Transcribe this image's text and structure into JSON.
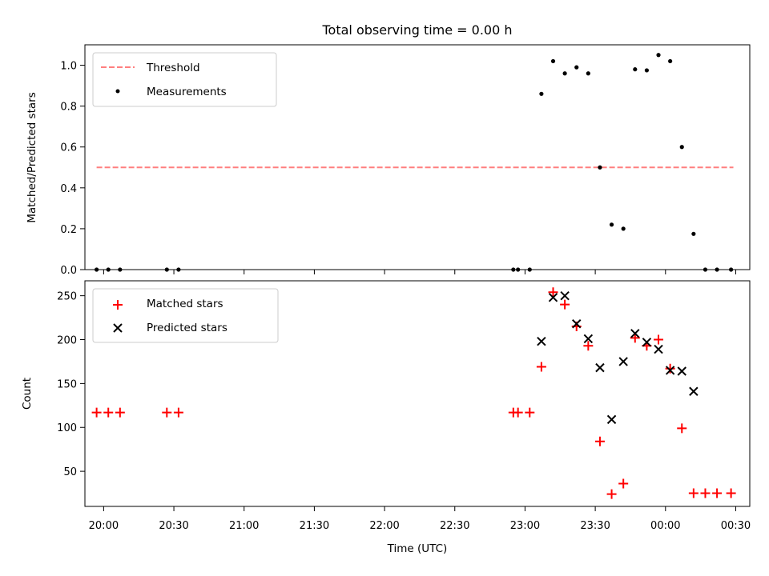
{
  "chart_data": [
    {
      "type": "scatter",
      "title": "Total observing time = 0.00 h",
      "xlabel": "",
      "ylabel": "Matched/Predicted stars",
      "xlim": [
        "19:52",
        "00:36"
      ],
      "ylim": [
        0,
        1.1
      ],
      "yticks": [
        "0.0",
        "0.2",
        "0.4",
        "0.6",
        "0.8",
        "1.0"
      ],
      "legend_position": "top-left",
      "colors": {
        "threshold": "#ff7f7f",
        "measurements": "#000000"
      },
      "series": [
        {
          "name": "Threshold",
          "kind": "dashed-line",
          "x": [
            "19:57",
            "00:29"
          ],
          "y": [
            0.5,
            0.5
          ]
        },
        {
          "name": "Measurements",
          "kind": "dots",
          "x": [
            "19:57",
            "20:02",
            "20:07",
            "20:27",
            "20:32",
            "22:55",
            "22:57",
            "23:02",
            "23:07",
            "23:12",
            "23:17",
            "23:22",
            "23:27",
            "23:32",
            "23:37",
            "23:42",
            "23:47",
            "23:52",
            "23:57",
            "00:02",
            "00:07",
            "00:12",
            "00:17",
            "00:22",
            "00:28"
          ],
          "y": [
            0,
            0,
            0,
            0,
            0,
            0,
            0,
            0,
            0.86,
            1.02,
            0.96,
            0.99,
            0.96,
            0.5,
            0.22,
            0.2,
            0.98,
            0.975,
            1.05,
            1.02,
            0.6,
            0.175,
            0,
            0,
            0
          ]
        }
      ]
    },
    {
      "type": "scatter",
      "title": "",
      "xlabel": "Time (UTC)",
      "ylabel": "Count",
      "xlim": [
        "19:52",
        "00:36"
      ],
      "ylim": [
        10,
        267
      ],
      "yticks": [
        "50",
        "100",
        "150",
        "200",
        "250"
      ],
      "xticks": [
        "20:00",
        "20:30",
        "21:00",
        "21:30",
        "22:00",
        "22:30",
        "23:00",
        "23:30",
        "00:00",
        "00:30"
      ],
      "legend_position": "top-left",
      "colors": {
        "matched": "#ff0000",
        "predicted": "#000000"
      },
      "series": [
        {
          "name": "Matched stars",
          "kind": "plus",
          "x": [
            "19:57",
            "20:02",
            "20:07",
            "20:27",
            "20:32",
            "22:55",
            "22:57",
            "23:02",
            "23:07",
            "23:12",
            "23:17",
            "23:22",
            "23:27",
            "23:32",
            "23:37",
            "23:42",
            "23:47",
            "23:52",
            "23:57",
            "00:02",
            "00:07",
            "00:12",
            "00:17",
            "00:22",
            "00:28"
          ],
          "y": [
            117,
            117,
            117,
            117,
            117,
            117,
            117,
            117,
            169,
            254,
            240,
            215,
            193,
            84,
            24,
            36,
            202,
            193,
            200,
            167,
            99,
            25,
            25,
            25,
            25
          ]
        },
        {
          "name": "Predicted stars",
          "kind": "x",
          "x": [
            "23:07",
            "23:12",
            "23:17",
            "23:22",
            "23:27",
            "23:32",
            "23:37",
            "23:42",
            "23:47",
            "23:52",
            "23:57",
            "00:02",
            "00:07",
            "00:12"
          ],
          "y": [
            198,
            248,
            250,
            218,
            201,
            168,
            109,
            175,
            207,
            197,
            189,
            165,
            164,
            141
          ]
        }
      ]
    }
  ]
}
